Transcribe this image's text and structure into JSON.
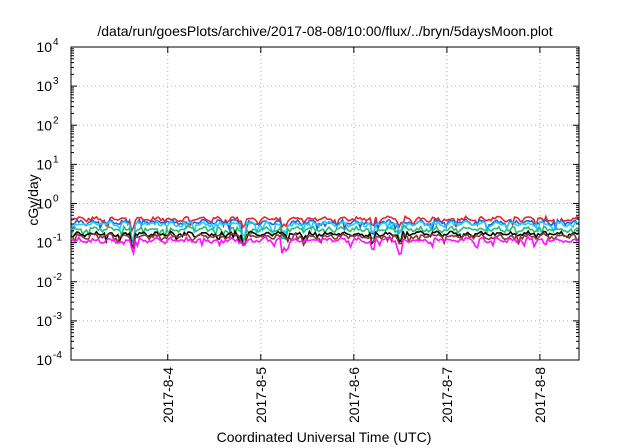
{
  "chart_data": {
    "type": "line",
    "title": "/data/run/goesPlots/archive/2017-08-08/10:00/flux/../bryn/5daysMoon.plot",
    "xlabel": "Coordinated Universal Time (UTC)",
    "ylabel": "cGy/day",
    "y_scale": "log",
    "ylim": [
      0.0001,
      10000
    ],
    "y_ticks": [
      {
        "base": "10",
        "exp": "-4",
        "value": 0.0001
      },
      {
        "base": "10",
        "exp": "-3",
        "value": 0.001
      },
      {
        "base": "10",
        "exp": "-2",
        "value": 0.01
      },
      {
        "base": "10",
        "exp": "-1",
        "value": 0.1
      },
      {
        "base": "10",
        "exp": "0",
        "value": 1
      },
      {
        "base": "10",
        "exp": "1",
        "value": 10
      },
      {
        "base": "10",
        "exp": "2",
        "value": 100
      },
      {
        "base": "10",
        "exp": "3",
        "value": 1000
      },
      {
        "base": "10",
        "exp": "4",
        "value": 10000
      }
    ],
    "xlim": [
      "2017-08-03 01:00",
      "2017-08-08 10:00"
    ],
    "x_tick_labels": [
      "2017-8-4",
      "2017-8-5",
      "2017-8-6",
      "2017-8-7",
      "2017-8-8"
    ],
    "x_tick_days": [
      1,
      2,
      3,
      4,
      5
    ],
    "x_range_days": [
      -0.04,
      5.42
    ],
    "grid": true,
    "series": [
      {
        "color": "#e8242b",
        "level": 0.4,
        "dips": [
          [
            0.35,
            0.6
          ],
          [
            0.62,
            0.7
          ],
          [
            1.82,
            0.7
          ],
          [
            2.25,
            0.75
          ],
          [
            3.2,
            0.7
          ],
          [
            3.5,
            0.72
          ]
        ]
      },
      {
        "color": "#1f63d8",
        "level": 0.33,
        "dips": [
          [
            0.62,
            0.35
          ],
          [
            1.82,
            0.45
          ],
          [
            2.25,
            0.55
          ],
          [
            3.2,
            0.5
          ],
          [
            3.5,
            0.55
          ]
        ]
      },
      {
        "color": "#22c9ff",
        "level": 0.3,
        "dips": [
          [
            0.62,
            0.45
          ],
          [
            1.82,
            0.5
          ],
          [
            2.25,
            0.6
          ],
          [
            3.2,
            0.55
          ],
          [
            3.5,
            0.6
          ]
        ]
      },
      {
        "color": "#20c070",
        "level": 0.22,
        "dips": [
          [
            0.62,
            0.5
          ],
          [
            1.82,
            0.55
          ],
          [
            2.25,
            0.6
          ],
          [
            3.2,
            0.6
          ],
          [
            3.5,
            0.6
          ]
        ]
      },
      {
        "color": "#00000a",
        "level": 0.165,
        "dips": [
          [
            0.62,
            0.55
          ],
          [
            1.82,
            0.6
          ],
          [
            3.2,
            0.6
          ],
          [
            3.5,
            0.6
          ]
        ]
      },
      {
        "color": "#8a3a2a",
        "level": 0.145,
        "dips": [
          [
            0.62,
            0.6
          ],
          [
            1.82,
            0.65
          ],
          [
            3.2,
            0.65
          ],
          [
            3.5,
            0.65
          ]
        ]
      },
      {
        "color": "#ff10ff",
        "level": 0.115,
        "dips": [
          [
            0.62,
            0.7
          ],
          [
            1.82,
            0.75
          ],
          [
            2.25,
            0.6
          ],
          [
            3.2,
            0.6
          ],
          [
            3.5,
            0.45
          ],
          [
            5.05,
            0.75
          ]
        ]
      }
    ]
  }
}
